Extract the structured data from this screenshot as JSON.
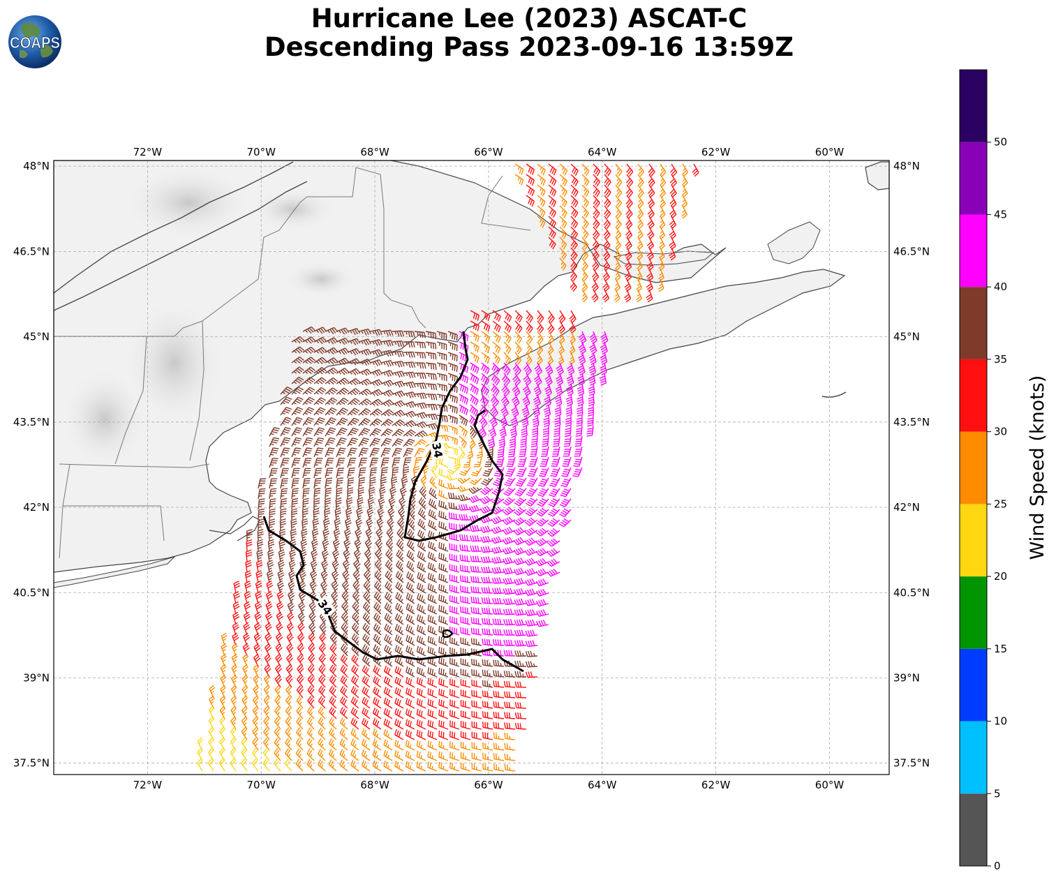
{
  "title": {
    "line1": "Hurricane Lee (2023) ASCAT-C",
    "line2": "Descending Pass 2023-09-16 13:59Z"
  },
  "logo": {
    "text": "COAPS",
    "icon": "coaps-globe-logo"
  },
  "map": {
    "lon_range": [
      -73.65,
      -58.95
    ],
    "lat_range": [
      37.3,
      48.1
    ],
    "lon_ticks": [
      "72°W",
      "70°W",
      "68°W",
      "66°W",
      "64°W",
      "62°W",
      "60°W"
    ],
    "lon_tick_values": [
      -72,
      -70,
      -68,
      -66,
      -64,
      -62,
      -60
    ],
    "lat_ticks": [
      "48°N",
      "46.5°N",
      "45°N",
      "43.5°N",
      "42°N",
      "40.5°N",
      "39°N",
      "37.5°N"
    ],
    "lat_tick_values": [
      48,
      46.5,
      45,
      43.5,
      42,
      40.5,
      39,
      37.5
    ],
    "storm_center": {
      "lon": -66.7,
      "lat": 42.8
    },
    "contour_label": "34",
    "contour_labels": [
      "34",
      "34"
    ]
  },
  "colorbar": {
    "label": "Wind Speed (knots)",
    "ticks": [
      "0",
      "5",
      "10",
      "15",
      "20",
      "25",
      "30",
      "35",
      "40",
      "45",
      "50"
    ],
    "bins": [
      {
        "min": 0,
        "max": 5,
        "color": "#555555"
      },
      {
        "min": 5,
        "max": 10,
        "color": "#00bfff"
      },
      {
        "min": 10,
        "max": 15,
        "color": "#003cff"
      },
      {
        "min": 15,
        "max": 20,
        "color": "#009500"
      },
      {
        "min": 20,
        "max": 25,
        "color": "#ffd710"
      },
      {
        "min": 25,
        "max": 30,
        "color": "#ff8c00"
      },
      {
        "min": 30,
        "max": 35,
        "color": "#ff0f0f"
      },
      {
        "min": 35,
        "max": 40,
        "color": "#7f3a2a"
      },
      {
        "min": 40,
        "max": 45,
        "color": "#ff00ff"
      },
      {
        "min": 45,
        "max": 50,
        "color": "#8800b8"
      },
      {
        "min": 50,
        "max": 55,
        "color": "#2a0060"
      }
    ]
  }
}
